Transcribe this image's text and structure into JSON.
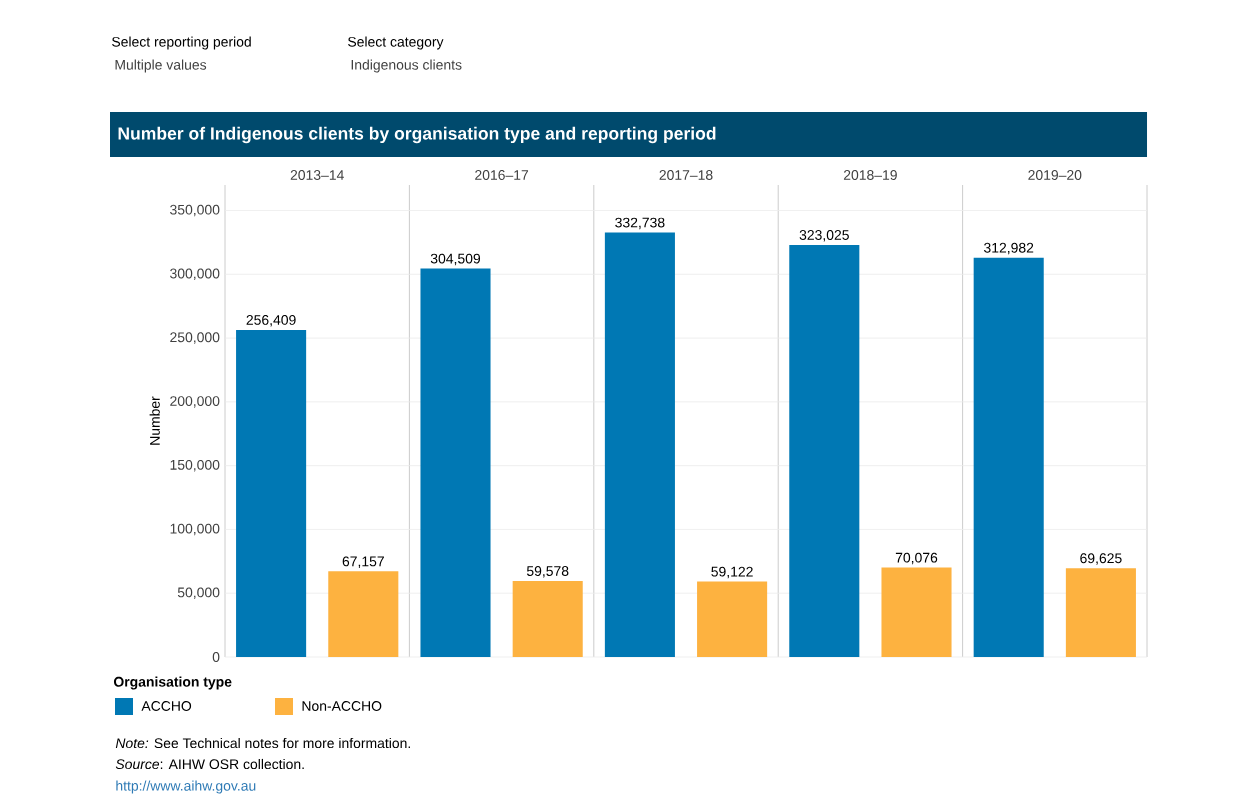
{
  "chart_data": {
    "type": "bar",
    "title": "Number of Indigenous clients by organisation type and reporting period",
    "ylabel": "Number",
    "legend_title": "Organisation type",
    "categories": [
      "2013–14",
      "2016–17",
      "2017–18",
      "2018–19",
      "2019–20"
    ],
    "series": [
      {
        "name": "ACCHO",
        "color": "#0078b4",
        "values": [
          256409,
          304509,
          332738,
          323025,
          312982
        ],
        "value_labels": [
          "256,409",
          "304,509",
          "332,738",
          "323,025",
          "312,982"
        ]
      },
      {
        "name": "Non-ACCHO",
        "color": "#fdb240",
        "values": [
          67157,
          59578,
          59122,
          70076,
          69625
        ],
        "value_labels": [
          "67,157",
          "59,578",
          "59,122",
          "70,076",
          "69,625"
        ]
      }
    ],
    "ylim": [
      0,
      370000
    ],
    "yticks": [
      0,
      {
        "value": 50000,
        "label": "50,000"
      },
      {
        "value": 100000,
        "label": "100,000"
      },
      {
        "value": 150000,
        "label": "150,000"
      },
      {
        "value": 200000,
        "label": "200,000"
      },
      {
        "value": 250000,
        "label": "250,000"
      },
      {
        "value": 300000,
        "label": "300,000"
      },
      {
        "value": 350000,
        "label": "350,000"
      }
    ],
    "grid": "y",
    "legend": "bottom left",
    "annotations": [
      "Select reporting period",
      "Multiple values",
      "Select category",
      "Indigenous clients",
      "*Note:* See Technical notes for more information.",
      "*Source*: AIHW OSR collection.",
      "http://www.aihw.gov.au"
    ]
  }
}
